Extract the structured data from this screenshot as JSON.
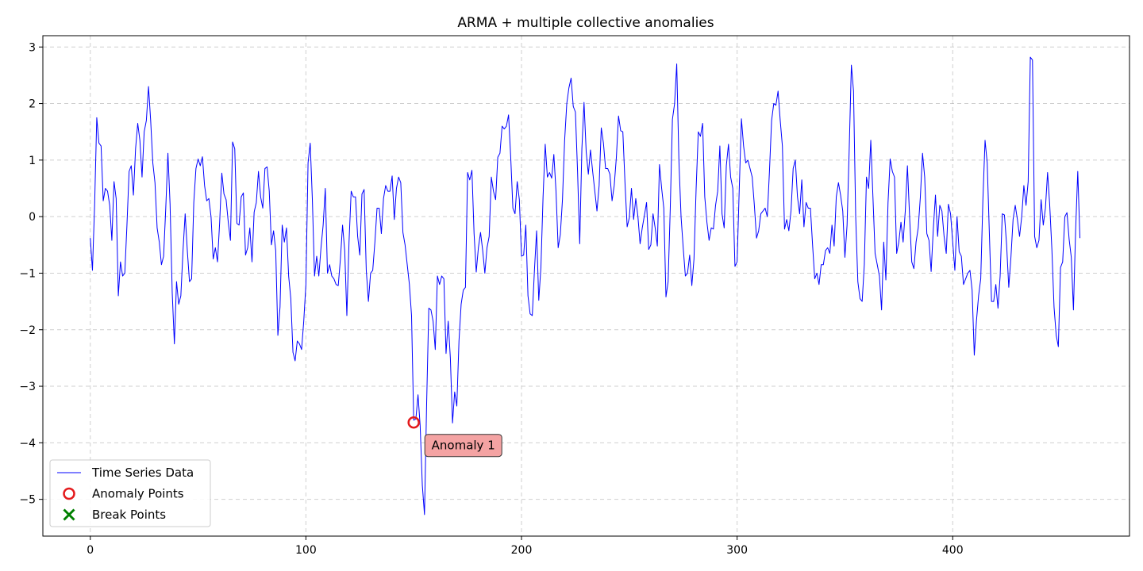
{
  "chart_data": {
    "type": "line",
    "title": "ARMA + multiple collective anomalies",
    "xlabel": "",
    "ylabel": "",
    "xlim": [
      -22,
      482
    ],
    "ylim": [
      -5.65,
      3.2
    ],
    "xticks": [
      0,
      100,
      200,
      300,
      400
    ],
    "yticks": [
      3,
      2,
      1,
      0,
      -1,
      -2,
      -3,
      -4,
      -5
    ],
    "grid": true,
    "legend_placement": "lower-left",
    "colors": {
      "series": "#0000ff",
      "anomaly": "#e41a1c",
      "break": "#008000",
      "annotation_fill": "#f4a3a3"
    },
    "series": [
      {
        "name": "Time Series Data",
        "x_start": 0,
        "x_step": 1,
        "y": [
          -0.38,
          -0.95,
          0.2,
          1.75,
          1.3,
          1.25,
          0.28,
          0.5,
          0.45,
          0.2,
          -0.42,
          0.62,
          0.32,
          -1.4,
          -0.8,
          -1.05,
          -1.0,
          -0.15,
          0.8,
          0.9,
          0.38,
          1.2,
          1.65,
          1.35,
          0.7,
          1.5,
          1.7,
          2.3,
          1.7,
          0.95,
          0.6,
          -0.2,
          -0.45,
          -0.85,
          -0.7,
          0.15,
          1.12,
          0.22,
          -1.35,
          -2.25,
          -1.15,
          -1.55,
          -1.4,
          -0.6,
          0.05,
          -0.6,
          -1.15,
          -1.1,
          0.25,
          0.85,
          1.02,
          0.9,
          1.06,
          0.55,
          0.28,
          0.32,
          0.0,
          -0.75,
          -0.55,
          -0.8,
          -0.1,
          0.77,
          0.4,
          0.3,
          -0.1,
          -0.42,
          1.32,
          1.2,
          -0.12,
          -0.15,
          0.35,
          0.42,
          -0.68,
          -0.55,
          -0.2,
          -0.8,
          0.08,
          0.25,
          0.8,
          0.35,
          0.15,
          0.85,
          0.88,
          0.45,
          -0.5,
          -0.25,
          -0.6,
          -2.1,
          -1.6,
          -0.15,
          -0.45,
          -0.2,
          -1.05,
          -1.45,
          -2.4,
          -2.55,
          -2.2,
          -2.25,
          -2.35,
          -1.85,
          -1.2,
          0.95,
          1.3,
          0.3,
          -1.05,
          -0.7,
          -1.05,
          -0.55,
          -0.15,
          0.5,
          -1.0,
          -0.85,
          -1.05,
          -1.1,
          -1.2,
          -1.22,
          -0.75,
          -0.15,
          -0.6,
          -1.75,
          -0.45,
          0.45,
          0.35,
          0.35,
          -0.35,
          -0.68,
          0.4,
          0.48,
          -0.95,
          -1.5,
          -1.0,
          -0.95,
          -0.45,
          0.15,
          0.15,
          -0.3,
          0.32,
          0.55,
          0.45,
          0.45,
          0.72,
          -0.05,
          0.5,
          0.7,
          0.6,
          -0.28,
          -0.5,
          -0.85,
          -1.2,
          -1.75,
          -3.6,
          -3.58,
          -3.15,
          -3.7,
          -4.75,
          -5.27,
          -3.3,
          -1.62,
          -1.65,
          -1.85,
          -2.35,
          -1.05,
          -1.2,
          -1.05,
          -1.1,
          -2.42,
          -1.85,
          -2.5,
          -3.65,
          -3.1,
          -3.35,
          -2.2,
          -1.55,
          -1.3,
          -1.25,
          0.78,
          0.65,
          0.82,
          -0.3,
          -0.98,
          -0.55,
          -0.28,
          -0.6,
          -1.0,
          -0.55,
          -0.35,
          0.7,
          0.45,
          0.3,
          1.05,
          1.12,
          1.6,
          1.55,
          1.6,
          1.8,
          1.05,
          0.15,
          0.05,
          0.62,
          0.3,
          -0.7,
          -0.68,
          -0.15,
          -1.4,
          -1.72,
          -1.75,
          -0.95,
          -0.25,
          -1.48,
          -0.9,
          0.35,
          1.28,
          0.7,
          0.78,
          0.68,
          1.1,
          0.45,
          -0.55,
          -0.32,
          0.3,
          1.35,
          2.0,
          2.28,
          2.45,
          1.95,
          1.85,
          0.8,
          -0.48,
          1.2,
          2.02,
          1.15,
          0.75,
          1.18,
          0.8,
          0.45,
          0.1,
          0.55,
          1.57,
          1.3,
          0.85,
          0.85,
          0.75,
          0.28,
          0.55,
          1.05,
          1.78,
          1.52,
          1.5,
          0.6,
          -0.18,
          -0.02,
          0.5,
          -0.05,
          0.32,
          0.0,
          -0.48,
          -0.2,
          0.02,
          0.25,
          -0.58,
          -0.5,
          0.05,
          -0.2,
          -0.52,
          0.92,
          0.5,
          0.15,
          -1.42,
          -1.15,
          0.15,
          1.72,
          2.0,
          2.7,
          1.0,
          0.0,
          -0.55,
          -1.05,
          -1.0,
          -0.68,
          -1.22,
          -0.75,
          0.5,
          1.5,
          1.42,
          1.65,
          0.35,
          -0.1,
          -0.42,
          -0.2,
          -0.22,
          0.2,
          0.45,
          1.25,
          0.05,
          -0.2,
          0.9,
          1.28,
          0.7,
          0.5,
          -0.88,
          -0.8,
          0.5,
          1.73,
          1.25,
          0.95,
          1.0,
          0.85,
          0.7,
          0.2,
          -0.38,
          -0.25,
          0.05,
          0.1,
          0.15,
          0.0,
          0.8,
          1.7,
          2.0,
          1.97,
          2.22,
          1.7,
          1.25,
          -0.22,
          -0.05,
          -0.25,
          0.1,
          0.85,
          1.0,
          0.35,
          0.05,
          0.65,
          -0.18,
          0.25,
          0.15,
          0.15,
          -0.5,
          -1.1,
          -1.0,
          -1.2,
          -0.85,
          -0.85,
          -0.6,
          -0.55,
          -0.65,
          -0.15,
          -0.52,
          0.35,
          0.6,
          0.38,
          0.1,
          -0.72,
          -0.15,
          1.2,
          2.68,
          2.22,
          0.0,
          -1.15,
          -1.45,
          -1.5,
          -0.85,
          0.7,
          0.5,
          1.35,
          0.35,
          -0.65,
          -0.85,
          -1.05,
          -1.65,
          -0.45,
          -1.12,
          0.25,
          1.02,
          0.8,
          0.7,
          -0.65,
          -0.45,
          -0.1,
          -0.45,
          0.1,
          0.9,
          0.0,
          -0.8,
          -0.92,
          -0.45,
          -0.2,
          0.35,
          1.12,
          0.7,
          -0.3,
          -0.42,
          -0.97,
          -0.22,
          0.38,
          -0.35,
          0.2,
          0.1,
          -0.35,
          -0.65,
          0.22,
          0.05,
          -0.45,
          -0.95,
          0.0,
          -0.62,
          -0.7,
          -1.2,
          -1.1,
          -1.0,
          -0.95,
          -1.3,
          -2.45,
          -1.85,
          -1.4,
          -1.1,
          0.3,
          1.35,
          0.95,
          -0.3,
          -1.5,
          -1.5,
          -1.2,
          -1.62,
          -1.05,
          0.05,
          0.03,
          -0.5,
          -1.25,
          -0.72,
          -0.05,
          0.2,
          -0.05,
          -0.35,
          0.0,
          0.55,
          0.2,
          0.62,
          2.82,
          2.77,
          -0.35,
          -0.55,
          -0.42,
          0.3,
          -0.15,
          0.15,
          0.78,
          0.2,
          -0.58,
          -1.6,
          -2.1,
          -2.3,
          -0.9,
          -0.8,
          0.0,
          0.07,
          -0.4,
          -0.72,
          -1.65,
          -0.25,
          0.8,
          -0.38
        ]
      }
    ],
    "anomaly_points": [
      {
        "x": 150,
        "y": -3.64,
        "label": "Anomaly 1"
      }
    ],
    "break_points": [],
    "legend": [
      {
        "label": "Time Series Data",
        "marker": "line"
      },
      {
        "label": "Anomaly Points",
        "marker": "circle"
      },
      {
        "label": "Break Points",
        "marker": "x"
      }
    ]
  }
}
